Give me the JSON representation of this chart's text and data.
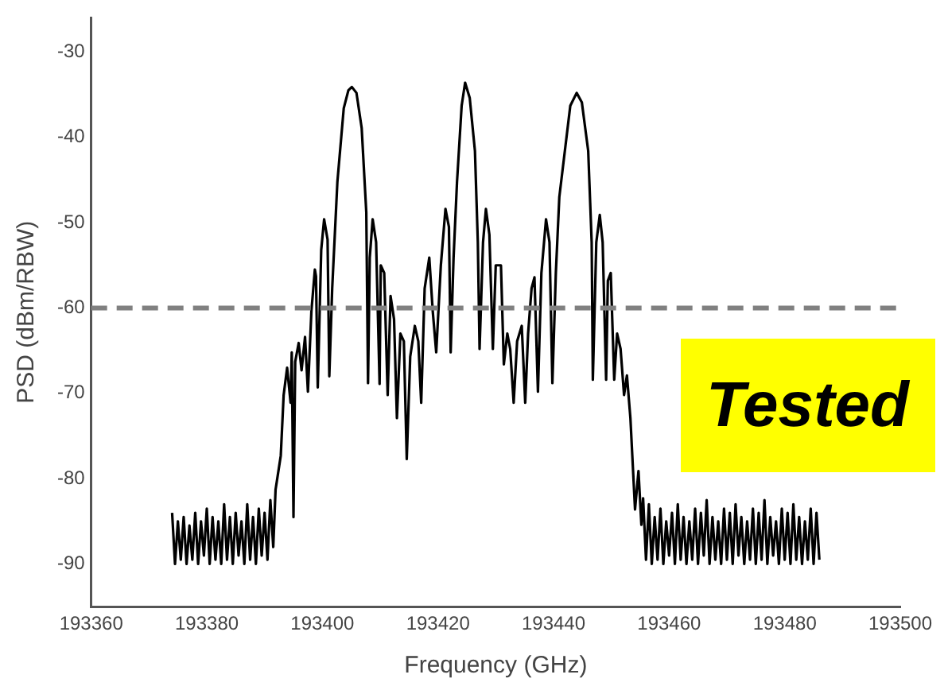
{
  "chart_data": {
    "type": "line",
    "xlabel": "Frequency (GHz)",
    "ylabel": "PSD (dBm/RBW)",
    "xlim": [
      193360,
      193500
    ],
    "xticks": [
      193360,
      193380,
      193400,
      193420,
      193440,
      193460,
      193480,
      193500
    ],
    "ylim": [
      -95,
      -26
    ],
    "yticks": [
      -90,
      -80,
      -70,
      -60,
      -50,
      -40,
      -30
    ],
    "grid": false,
    "legend": false,
    "marker": "none",
    "line_style": "solid",
    "ref_lines": [
      {
        "axis": "y",
        "value": -60,
        "color": "#808080",
        "line_style": "dashed"
      }
    ],
    "annotations": [
      "Tested"
    ],
    "series": [
      {
        "color": "#000000",
        "x": [
          193374.0,
          193374.5,
          193375.0,
          193375.5,
          193376.0,
          193376.5,
          193377.0,
          193377.5,
          193378.0,
          193378.5,
          193379.0,
          193379.5,
          193380.0,
          193380.5,
          193381.0,
          193381.5,
          193382.0,
          193382.5,
          193383.0,
          193383.5,
          193384.0,
          193384.5,
          193385.0,
          193385.5,
          193386.0,
          193386.5,
          193387.0,
          193387.5,
          193388.0,
          193388.5,
          193389.0,
          193389.5,
          193390.0,
          193390.5,
          193391.0,
          193391.5,
          193391.9,
          193392.8,
          193393.3,
          193393.9,
          193394.5,
          193394.7,
          193395.0,
          193395.3,
          193395.9,
          193396.4,
          193397.0,
          193397.5,
          193398.1,
          193398.7,
          193398.9,
          193399.2,
          193399.8,
          193400.3,
          193400.9,
          193401.2,
          193401.7,
          193402.6,
          193403.7,
          193404.5,
          193405.1,
          193405.9,
          193406.8,
          193407.6,
          193407.9,
          193408.2,
          193408.7,
          193409.3,
          193409.9,
          193410.1,
          193410.7,
          193411.3,
          193411.8,
          193412.4,
          193412.9,
          193413.5,
          193414.1,
          193414.6,
          193415.2,
          193416.0,
          193416.6,
          193417.1,
          193417.7,
          193418.5,
          193419.1,
          193419.7,
          193420.5,
          193421.3,
          193421.9,
          193422.2,
          193422.7,
          193423.3,
          193424.1,
          193424.7,
          193425.5,
          193426.4,
          193426.9,
          193427.2,
          193427.8,
          193428.3,
          193428.9,
          193429.5,
          193430.0,
          193430.9,
          193431.4,
          193432.0,
          193432.5,
          193433.1,
          193433.7,
          193434.5,
          193435.1,
          193435.6,
          193436.2,
          193436.7,
          193437.3,
          193437.9,
          193438.7,
          193439.3,
          193439.8,
          193440.4,
          193441.0,
          193442.9,
          193444.0,
          193444.9,
          193446.0,
          193446.6,
          193446.8,
          193447.4,
          193448.0,
          193448.5,
          193449.1,
          193449.4,
          193449.9,
          193450.5,
          193451.0,
          193451.6,
          193452.2,
          193452.7,
          193453.3,
          193454.1,
          193454.7,
          193455.2,
          193455.5,
          193456.0,
          193456.5,
          193457.0,
          193457.5,
          193458.0,
          193458.5,
          193459.0,
          193459.5,
          193460.0,
          193460.5,
          193461.0,
          193461.5,
          193462.0,
          193462.5,
          193463.0,
          193463.5,
          193464.0,
          193464.5,
          193465.0,
          193465.5,
          193466.0,
          193466.5,
          193467.0,
          193467.5,
          193468.0,
          193468.5,
          193469.0,
          193469.5,
          193470.0,
          193470.5,
          193471.0,
          193471.5,
          193472.0,
          193472.5,
          193473.0,
          193473.5,
          193474.0,
          193474.5,
          193475.0,
          193475.5,
          193476.0,
          193476.5,
          193477.0,
          193477.5,
          193478.0,
          193478.5,
          193479.0,
          193479.5,
          193480.0,
          193480.5,
          193481.0,
          193481.5,
          193482.0,
          193482.5,
          193483.0,
          193483.5,
          193484.0,
          193484.5,
          193485.0,
          193485.5,
          193486.0
        ],
        "values": [
          -84.0,
          -90.0,
          -85.0,
          -89.5,
          -84.5,
          -90.0,
          -85.5,
          -89.5,
          -84.0,
          -90.0,
          -85.0,
          -89.0,
          -83.5,
          -90.0,
          -84.5,
          -89.5,
          -85.0,
          -90.0,
          -83.0,
          -89.5,
          -84.5,
          -90.0,
          -84.0,
          -89.0,
          -85.0,
          -90.0,
          -83.0,
          -89.5,
          -84.5,
          -90.0,
          -83.5,
          -89.0,
          -84.0,
          -89.5,
          -82.5,
          -88.0,
          -81.3,
          -77.3,
          -70.2,
          -67.0,
          -71.1,
          -65.2,
          -84.5,
          -66.3,
          -64.1,
          -67.3,
          -63.4,
          -69.8,
          -60.4,
          -55.5,
          -56.3,
          -69.3,
          -53.2,
          -49.6,
          -52.0,
          -68.0,
          -57.7,
          -45.2,
          -36.6,
          -34.5,
          -34.1,
          -34.8,
          -38.9,
          -48.8,
          -68.8,
          -54.1,
          -49.6,
          -52.3,
          -68.9,
          -55.0,
          -55.9,
          -70.2,
          -58.6,
          -61.3,
          -72.9,
          -63.0,
          -63.9,
          -77.7,
          -65.7,
          -62.1,
          -63.9,
          -71.1,
          -57.7,
          -54.1,
          -60.4,
          -65.2,
          -55.0,
          -48.4,
          -50.5,
          -65.2,
          -54.1,
          -45.2,
          -36.3,
          -33.6,
          -35.4,
          -41.6,
          -52.3,
          -64.8,
          -52.3,
          -48.4,
          -51.4,
          -64.8,
          -55.0,
          -55.0,
          -66.6,
          -63.0,
          -64.8,
          -71.1,
          -63.9,
          -62.1,
          -71.1,
          -63.0,
          -57.7,
          -56.4,
          -69.8,
          -55.9,
          -49.6,
          -52.3,
          -68.8,
          -55.9,
          -47.0,
          -36.3,
          -34.8,
          -35.9,
          -41.6,
          -52.3,
          -68.4,
          -52.3,
          -49.1,
          -52.3,
          -68.4,
          -56.8,
          -55.9,
          -68.4,
          -63.0,
          -64.8,
          -70.2,
          -67.9,
          -72.9,
          -83.6,
          -79.1,
          -85.4,
          -82.3,
          -89.5,
          -83.0,
          -90.0,
          -84.5,
          -89.5,
          -83.5,
          -90.0,
          -85.0,
          -89.0,
          -84.0,
          -90.0,
          -83.0,
          -89.5,
          -84.5,
          -90.0,
          -85.0,
          -89.5,
          -83.5,
          -90.0,
          -84.0,
          -89.0,
          -82.5,
          -90.0,
          -84.5,
          -89.5,
          -85.0,
          -90.0,
          -83.5,
          -89.5,
          -84.0,
          -90.0,
          -83.0,
          -89.0,
          -84.5,
          -90.0,
          -85.0,
          -89.5,
          -83.5,
          -90.0,
          -84.0,
          -89.5,
          -82.5,
          -90.0,
          -84.5,
          -89.0,
          -85.0,
          -90.0,
          -83.5,
          -89.5,
          -84.0,
          -90.0,
          -83.0,
          -89.5,
          -84.5,
          -90.0,
          -85.0,
          -89.5,
          -83.5,
          -90.0,
          -84.0,
          -89.5
        ]
      }
    ]
  }
}
